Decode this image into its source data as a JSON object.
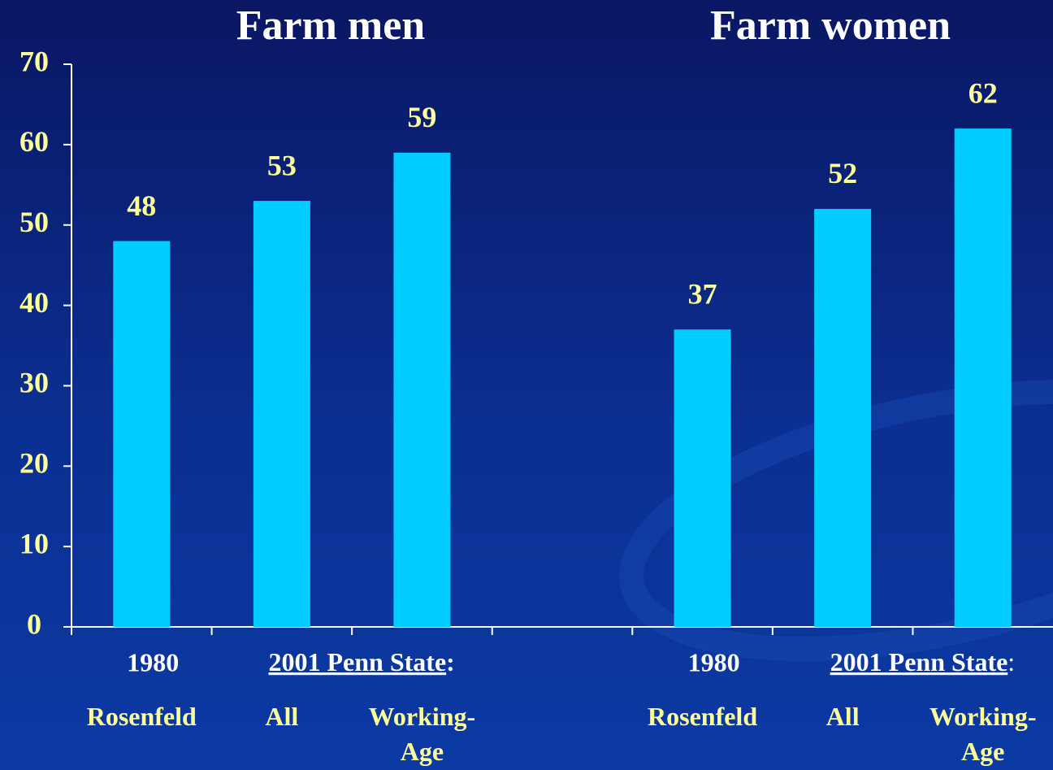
{
  "chart_data": {
    "type": "bar",
    "titles": [
      "Farm men",
      "Farm women"
    ],
    "categories": [
      "Rosenfeld",
      "All",
      "Working-Age",
      null,
      "Rosenfeld",
      "All",
      "Working-Age"
    ],
    "values": [
      48,
      53,
      59,
      null,
      37,
      52,
      62
    ],
    "sublabels": [
      [
        "1980",
        "2001 Penn State",
        ":"
      ],
      [
        "1980",
        "2001 Penn State",
        ":"
      ]
    ],
    "color": "#00ccff",
    "ylim": [
      0,
      70
    ],
    "yticks": [
      0,
      10,
      20,
      30,
      40,
      50,
      60,
      70
    ],
    "grid": false
  }
}
